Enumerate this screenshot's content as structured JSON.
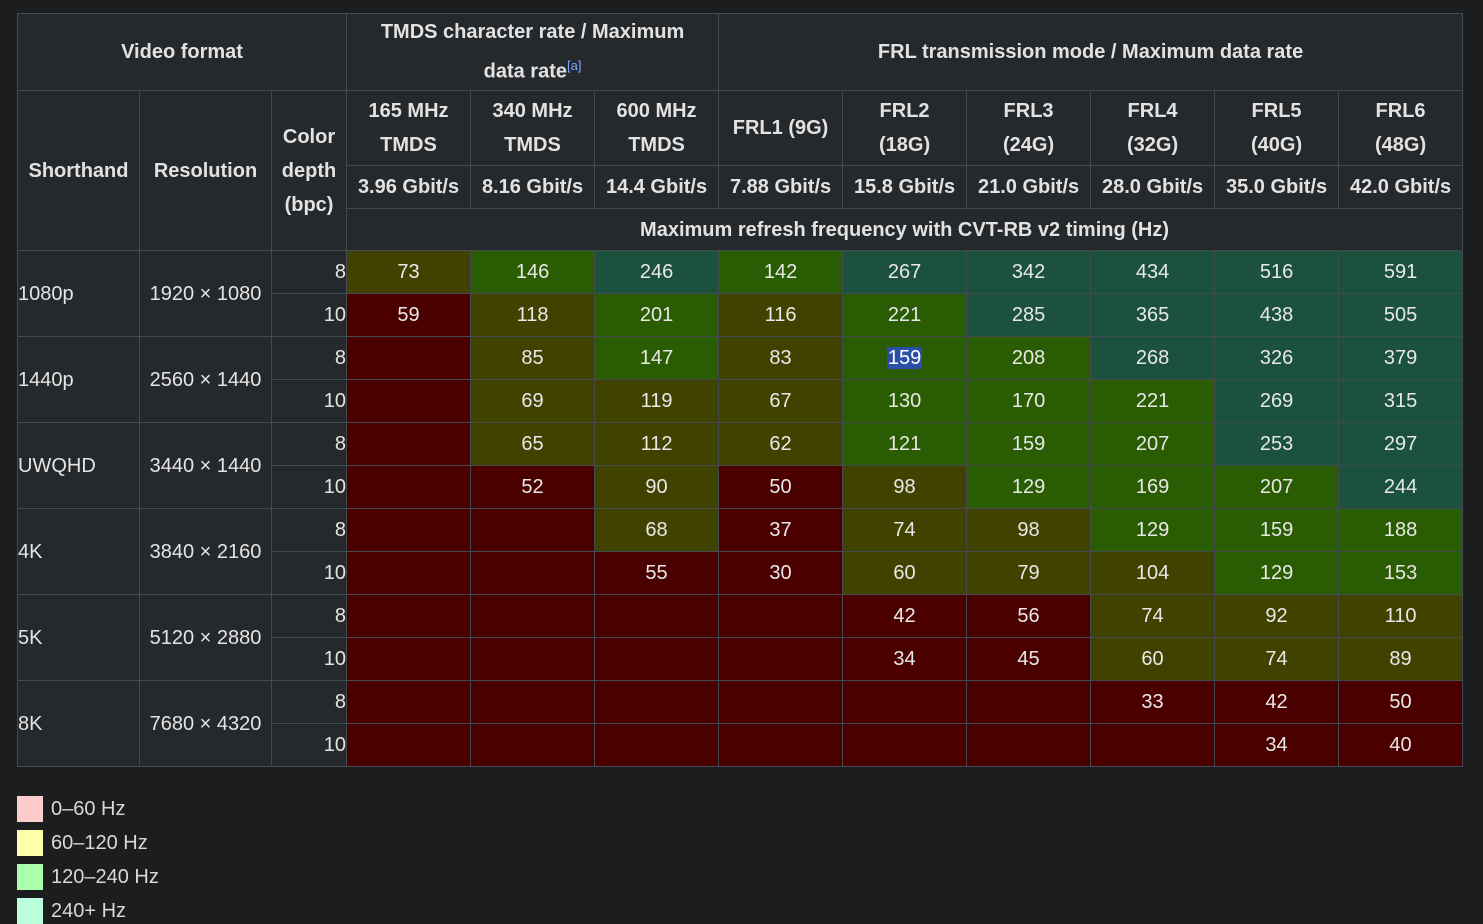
{
  "header": {
    "video_format": "Video format",
    "tmds_title_line1": "TMDS character rate / Maximum",
    "tmds_title_line2": "data rate",
    "tmds_note": "[a]",
    "frl_title": "FRL transmission mode / Maximum data rate",
    "shorthand": "Shorthand",
    "resolution": "Resolution",
    "color_depth_line1": "Color",
    "color_depth_line2": "depth",
    "color_depth_line3": "(bpc)",
    "refresh_caption": "Maximum refresh frequency with CVT-RB v2 timing (Hz)"
  },
  "modes": [
    {
      "line1": "165 MHz",
      "line2": "TMDS",
      "rate": "3.96 Gbit/s"
    },
    {
      "line1": "340 MHz",
      "line2": "TMDS",
      "rate": "8.16 Gbit/s"
    },
    {
      "line1": "600 MHz",
      "line2": "TMDS",
      "rate": "14.4 Gbit/s"
    },
    {
      "line1": "FRL1 (9G)",
      "line2": "",
      "rate": "7.88 Gbit/s"
    },
    {
      "line1": "FRL2",
      "line2": "(18G)",
      "rate": "15.8 Gbit/s"
    },
    {
      "line1": "FRL3",
      "line2": "(24G)",
      "rate": "21.0 Gbit/s"
    },
    {
      "line1": "FRL4",
      "line2": "(32G)",
      "rate": "28.0 Gbit/s"
    },
    {
      "line1": "FRL5",
      "line2": "(40G)",
      "rate": "35.0 Gbit/s"
    },
    {
      "line1": "FRL6",
      "line2": "(48G)",
      "rate": "42.0 Gbit/s"
    }
  ],
  "formats": [
    {
      "shorthand": "1080p",
      "resolution": "1920 × 1080",
      "rows": [
        {
          "depth": "8",
          "values": [
            "73",
            "146",
            "246",
            "142",
            "267",
            "342",
            "434",
            "516",
            "591"
          ]
        },
        {
          "depth": "10",
          "values": [
            "59",
            "118",
            "201",
            "116",
            "221",
            "285",
            "365",
            "438",
            "505"
          ]
        }
      ]
    },
    {
      "shorthand": "1440p",
      "resolution": "2560 × 1440",
      "rows": [
        {
          "depth": "8",
          "values": [
            "",
            "85",
            "147",
            "83",
            "159",
            "208",
            "268",
            "326",
            "379"
          ]
        },
        {
          "depth": "10",
          "values": [
            "",
            "69",
            "119",
            "67",
            "130",
            "170",
            "221",
            "269",
            "315"
          ]
        }
      ]
    },
    {
      "shorthand": "UWQHD",
      "resolution": "3440 × 1440",
      "rows": [
        {
          "depth": "8",
          "values": [
            "",
            "65",
            "112",
            "62",
            "121",
            "159",
            "207",
            "253",
            "297"
          ]
        },
        {
          "depth": "10",
          "values": [
            "",
            "52",
            "90",
            "50",
            "98",
            "129",
            "169",
            "207",
            "244"
          ]
        }
      ]
    },
    {
      "shorthand": "4K",
      "resolution": "3840 × 2160",
      "rows": [
        {
          "depth": "8",
          "values": [
            "",
            "",
            "68",
            "37",
            "74",
            "98",
            "129",
            "159",
            "188"
          ]
        },
        {
          "depth": "10",
          "values": [
            "",
            "",
            "55",
            "30",
            "60",
            "79",
            "104",
            "129",
            "153"
          ]
        }
      ]
    },
    {
      "shorthand": "5K",
      "resolution": "5120 × 2880",
      "rows": [
        {
          "depth": "8",
          "values": [
            "",
            "",
            "",
            "",
            "42",
            "56",
            "74",
            "92",
            "110"
          ]
        },
        {
          "depth": "10",
          "values": [
            "",
            "",
            "",
            "",
            "34",
            "45",
            "60",
            "74",
            "89"
          ]
        }
      ]
    },
    {
      "shorthand": "8K",
      "resolution": "7680 × 4320",
      "rows": [
        {
          "depth": "8",
          "values": [
            "",
            "",
            "",
            "",
            "",
            "",
            "33",
            "42",
            "50"
          ]
        },
        {
          "depth": "10",
          "values": [
            "",
            "",
            "",
            "",
            "",
            "",
            "",
            "34",
            "40"
          ]
        }
      ]
    }
  ],
  "highlighted_cell": {
    "format": 1,
    "row": 0,
    "col": 4
  },
  "colors": {
    "red": "#4b0000",
    "yellow": "#424200",
    "green": "#2a5d03",
    "teal": "#1b513d",
    "selection": "#2b4ea6"
  },
  "legend": [
    {
      "label": "0–60 Hz",
      "color": "#ffcccc"
    },
    {
      "label": "60–120 Hz",
      "color": "#ffffaa"
    },
    {
      "label": "120–240 Hz",
      "color": "#aaffaa"
    },
    {
      "label": "240+ Hz",
      "color": "#bbffdd"
    }
  ]
}
